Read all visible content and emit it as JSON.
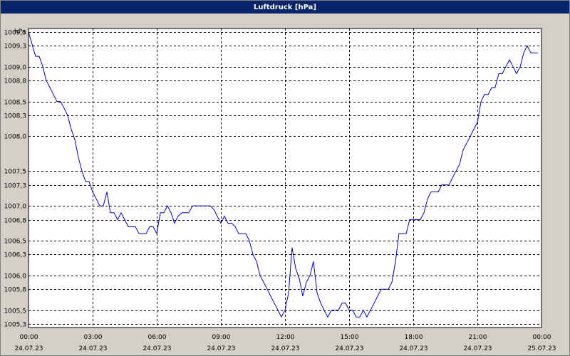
{
  "window": {
    "title": "Luftdruck [hPa]"
  },
  "chart_data": {
    "type": "line",
    "title": "Luftdruck [hPa]",
    "ylabel": "hPa",
    "xlabel": "",
    "ylim": [
      1005.25,
      1009.55
    ],
    "xlim_hours": [
      0,
      24
    ],
    "grid": true,
    "colors": {
      "line": "#0000cc",
      "plot_bg": "#ffffff",
      "grid": "#000000",
      "frame_bg": "#d4d0c8",
      "title_bg": "#0a246a"
    },
    "yticks": [
      {
        "value": 1005.3,
        "label": "1005,3"
      },
      {
        "value": 1005.5,
        "label": "1005,5"
      },
      {
        "value": 1005.8,
        "label": "1005,8"
      },
      {
        "value": 1006.0,
        "label": "1006,0"
      },
      {
        "value": 1006.3,
        "label": "1006,3"
      },
      {
        "value": 1006.5,
        "label": "1006,5"
      },
      {
        "value": 1006.8,
        "label": "1006,8"
      },
      {
        "value": 1007.0,
        "label": "1007,0"
      },
      {
        "value": 1007.3,
        "label": "1007,3"
      },
      {
        "value": 1007.5,
        "label": "1007,5"
      },
      {
        "value": 1008.0,
        "label": "1008,0"
      },
      {
        "value": 1008.3,
        "label": "1008,3"
      },
      {
        "value": 1008.5,
        "label": "1008,5"
      },
      {
        "value": 1008.8,
        "label": "1008,8"
      },
      {
        "value": 1009.0,
        "label": "1009,0"
      },
      {
        "value": 1009.3,
        "label": "1009,3"
      },
      {
        "value": 1009.5,
        "label": "1009,5"
      }
    ],
    "xticks": [
      {
        "hour": 0,
        "time": "00:00",
        "date": "24.07.23"
      },
      {
        "hour": 3,
        "time": "03:00",
        "date": "24.07.23"
      },
      {
        "hour": 6,
        "time": "06:00",
        "date": "24.07.23"
      },
      {
        "hour": 9,
        "time": "09:00",
        "date": "24.07.23"
      },
      {
        "hour": 12,
        "time": "12:00",
        "date": "24.07.23"
      },
      {
        "hour": 15,
        "time": "15:00",
        "date": "24.07.23"
      },
      {
        "hour": 18,
        "time": "18:00",
        "date": "24.07.23"
      },
      {
        "hour": 21,
        "time": "21:00",
        "date": "24.07.23"
      },
      {
        "hour": 24,
        "time": "00:00",
        "date": "25.07.23"
      }
    ],
    "series": [
      {
        "points": [
          [
            0.0,
            1009.5
          ],
          [
            0.33,
            1009.15
          ],
          [
            0.5,
            1009.15
          ],
          [
            0.67,
            1009.0
          ],
          [
            0.83,
            1008.8
          ],
          [
            1.0,
            1008.7
          ],
          [
            1.17,
            1008.6
          ],
          [
            1.33,
            1008.5
          ],
          [
            1.5,
            1008.5
          ],
          [
            1.67,
            1008.4
          ],
          [
            1.83,
            1008.3
          ],
          [
            2.0,
            1008.1
          ],
          [
            2.17,
            1007.95
          ],
          [
            2.33,
            1007.7
          ],
          [
            2.5,
            1007.5
          ],
          [
            2.67,
            1007.35
          ],
          [
            2.83,
            1007.35
          ],
          [
            3.0,
            1007.2
          ],
          [
            3.17,
            1007.1
          ],
          [
            3.33,
            1007.0
          ],
          [
            3.5,
            1007.0
          ],
          [
            3.67,
            1007.2
          ],
          [
            3.83,
            1006.9
          ],
          [
            4.0,
            1006.9
          ],
          [
            4.17,
            1006.8
          ],
          [
            4.33,
            1006.9
          ],
          [
            4.5,
            1006.8
          ],
          [
            4.67,
            1006.7
          ],
          [
            4.83,
            1006.7
          ],
          [
            5.0,
            1006.7
          ],
          [
            5.17,
            1006.6
          ],
          [
            5.33,
            1006.6
          ],
          [
            5.5,
            1006.6
          ],
          [
            5.67,
            1006.7
          ],
          [
            5.83,
            1006.7
          ],
          [
            6.0,
            1006.6
          ],
          [
            6.17,
            1006.9
          ],
          [
            6.33,
            1006.9
          ],
          [
            6.5,
            1007.0
          ],
          [
            6.67,
            1006.9
          ],
          [
            6.83,
            1006.75
          ],
          [
            7.0,
            1006.85
          ],
          [
            7.17,
            1006.9
          ],
          [
            7.33,
            1006.9
          ],
          [
            7.5,
            1006.9
          ],
          [
            7.67,
            1007.0
          ],
          [
            7.83,
            1007.0
          ],
          [
            8.0,
            1007.0
          ],
          [
            8.17,
            1007.0
          ],
          [
            8.33,
            1007.0
          ],
          [
            8.5,
            1007.0
          ],
          [
            8.67,
            1006.95
          ],
          [
            8.83,
            1006.85
          ],
          [
            9.0,
            1006.75
          ],
          [
            9.17,
            1006.85
          ],
          [
            9.33,
            1006.75
          ],
          [
            9.5,
            1006.75
          ],
          [
            9.67,
            1006.7
          ],
          [
            9.83,
            1006.6
          ],
          [
            10.0,
            1006.6
          ],
          [
            10.17,
            1006.6
          ],
          [
            10.33,
            1006.5
          ],
          [
            10.5,
            1006.3
          ],
          [
            10.67,
            1006.2
          ],
          [
            10.83,
            1006.0
          ],
          [
            11.0,
            1005.9
          ],
          [
            11.17,
            1005.8
          ],
          [
            11.33,
            1005.7
          ],
          [
            11.5,
            1005.6
          ],
          [
            11.67,
            1005.5
          ],
          [
            11.83,
            1005.4
          ],
          [
            12.0,
            1005.5
          ],
          [
            12.17,
            1005.75
          ],
          [
            12.33,
            1006.4
          ],
          [
            12.5,
            1006.1
          ],
          [
            12.67,
            1005.95
          ],
          [
            12.83,
            1005.7
          ],
          [
            13.0,
            1005.9
          ],
          [
            13.17,
            1006.0
          ],
          [
            13.33,
            1006.2
          ],
          [
            13.5,
            1005.75
          ],
          [
            13.67,
            1005.6
          ],
          [
            13.83,
            1005.5
          ],
          [
            14.0,
            1005.4
          ],
          [
            14.17,
            1005.5
          ],
          [
            14.33,
            1005.5
          ],
          [
            14.5,
            1005.5
          ],
          [
            14.67,
            1005.6
          ],
          [
            14.83,
            1005.6
          ],
          [
            15.0,
            1005.5
          ],
          [
            15.17,
            1005.5
          ],
          [
            15.33,
            1005.4
          ],
          [
            15.5,
            1005.4
          ],
          [
            15.67,
            1005.5
          ],
          [
            15.83,
            1005.4
          ],
          [
            16.0,
            1005.5
          ],
          [
            16.17,
            1005.6
          ],
          [
            16.33,
            1005.7
          ],
          [
            16.5,
            1005.8
          ],
          [
            16.67,
            1005.8
          ],
          [
            16.83,
            1005.8
          ],
          [
            17.0,
            1005.9
          ],
          [
            17.17,
            1006.2
          ],
          [
            17.33,
            1006.6
          ],
          [
            17.5,
            1006.6
          ],
          [
            17.67,
            1006.6
          ],
          [
            17.83,
            1006.8
          ],
          [
            18.0,
            1006.8
          ],
          [
            18.17,
            1006.8
          ],
          [
            18.33,
            1006.8
          ],
          [
            18.5,
            1006.9
          ],
          [
            18.67,
            1007.1
          ],
          [
            18.83,
            1007.2
          ],
          [
            19.0,
            1007.2
          ],
          [
            19.17,
            1007.2
          ],
          [
            19.33,
            1007.3
          ],
          [
            19.5,
            1007.3
          ],
          [
            19.67,
            1007.3
          ],
          [
            19.83,
            1007.4
          ],
          [
            20.0,
            1007.5
          ],
          [
            20.17,
            1007.6
          ],
          [
            20.33,
            1007.8
          ],
          [
            20.5,
            1007.9
          ],
          [
            20.67,
            1008.0
          ],
          [
            20.83,
            1008.1
          ],
          [
            21.0,
            1008.2
          ],
          [
            21.17,
            1008.5
          ],
          [
            21.33,
            1008.6
          ],
          [
            21.5,
            1008.6
          ],
          [
            21.67,
            1008.7
          ],
          [
            21.83,
            1008.7
          ],
          [
            22.0,
            1008.9
          ],
          [
            22.17,
            1008.9
          ],
          [
            22.33,
            1009.0
          ],
          [
            22.5,
            1009.1
          ],
          [
            22.67,
            1009.0
          ],
          [
            22.83,
            1008.9
          ],
          [
            23.0,
            1009.0
          ],
          [
            23.17,
            1009.2
          ],
          [
            23.33,
            1009.3
          ],
          [
            23.5,
            1009.2
          ],
          [
            23.67,
            1009.2
          ],
          [
            23.83,
            1009.2
          ]
        ]
      }
    ]
  }
}
